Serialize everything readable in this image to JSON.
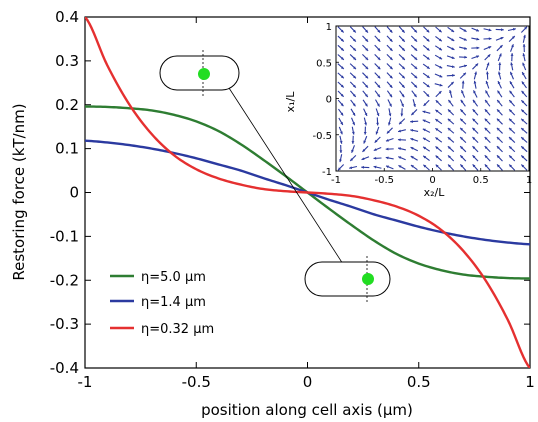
{
  "chart_data": [
    {
      "type": "line",
      "xlabel": "position along cell axis (μm)",
      "ylabel": "Restoring force (kT/nm)",
      "xlim": [
        -1,
        1
      ],
      "ylim": [
        -0.4,
        0.4
      ],
      "xticks": [
        -1,
        -0.5,
        0,
        0.5,
        1
      ],
      "xtick_labels": [
        "-1",
        "-0.5",
        "0",
        "0.5",
        "1"
      ],
      "yticks": [
        0.4,
        0.3,
        0.2,
        0.1,
        0,
        -0.1,
        -0.2,
        -0.3,
        -0.4
      ],
      "ytick_labels": [
        "0.4",
        "0.3",
        "0.2",
        "0.1",
        "0",
        "-0.1",
        "-0.2",
        "-0.3",
        "-0.4"
      ],
      "legend_position": "bottom-left",
      "series": [
        {
          "name": "η=5.0 μm",
          "color": "#2e7d32",
          "x": [
            -1,
            -0.9,
            -0.8,
            -0.7,
            -0.6,
            -0.5,
            -0.4,
            -0.3,
            -0.2,
            -0.1,
            0,
            0.1,
            0.2,
            0.3,
            0.4,
            0.5,
            0.6,
            0.7,
            0.8,
            0.9,
            1
          ],
          "y": [
            0.196,
            0.195,
            0.192,
            0.187,
            0.177,
            0.162,
            0.14,
            0.11,
            0.075,
            0.038,
            0,
            -0.038,
            -0.075,
            -0.11,
            -0.14,
            -0.162,
            -0.177,
            -0.187,
            -0.192,
            -0.195,
            -0.196
          ]
        },
        {
          "name": "η=1.4 μm",
          "color": "#2b3aa0",
          "x": [
            -1,
            -0.9,
            -0.8,
            -0.7,
            -0.6,
            -0.5,
            -0.4,
            -0.3,
            -0.2,
            -0.1,
            0,
            0.1,
            0.2,
            0.3,
            0.4,
            0.5,
            0.6,
            0.7,
            0.8,
            0.9,
            1
          ],
          "y": [
            0.118,
            0.114,
            0.108,
            0.1,
            0.09,
            0.078,
            0.064,
            0.05,
            0.033,
            0.017,
            0,
            -0.017,
            -0.033,
            -0.05,
            -0.064,
            -0.078,
            -0.09,
            -0.1,
            -0.108,
            -0.114,
            -0.118
          ]
        },
        {
          "name": "η=0.32 μm",
          "color": "#e53030",
          "x": [
            -1,
            -0.9,
            -0.8,
            -0.7,
            -0.6,
            -0.5,
            -0.4,
            -0.3,
            -0.2,
            -0.1,
            0,
            0.1,
            0.2,
            0.3,
            0.4,
            0.5,
            0.6,
            0.7,
            0.8,
            0.9,
            1
          ],
          "y": [
            0.4,
            0.29,
            0.2,
            0.133,
            0.085,
            0.053,
            0.032,
            0.018,
            0.008,
            0.003,
            0,
            -0.003,
            -0.008,
            -0.018,
            -0.032,
            -0.053,
            -0.085,
            -0.133,
            -0.2,
            -0.29,
            -0.4
          ]
        }
      ]
    },
    {
      "type": "quiver",
      "xlabel": "x₂/L",
      "ylabel": "x₁/L",
      "xlim": [
        -1,
        1
      ],
      "ylim": [
        -1,
        1
      ],
      "xticks": [
        -1,
        -0.5,
        0,
        0.5,
        1
      ],
      "xtick_labels": [
        "-1",
        "-0.5",
        "0",
        "0.5",
        "1"
      ],
      "yticks": [
        1,
        0.5,
        0,
        -0.5,
        -1
      ],
      "ytick_labels": [
        "1",
        "0.5",
        "0",
        "-0.5",
        "-1"
      ],
      "grid_points": 16,
      "arrow_color": "#2b3aa0",
      "field": "restoring force toward x1 = x2 diagonal"
    }
  ],
  "colors": {
    "cell_outline": "#000000",
    "cell_marker": "#22dd22"
  },
  "icons": [
    "cell-schematic-top",
    "cell-schematic-bottom"
  ]
}
